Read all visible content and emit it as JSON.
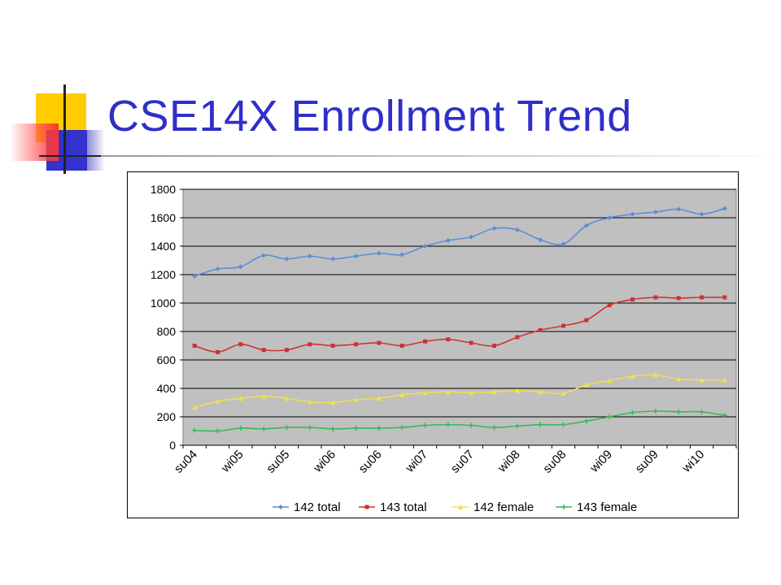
{
  "slide": {
    "title": "CSE14X Enrollment Trend"
  },
  "colors": {
    "title": "#2f2fc8",
    "plot_background": "#c0c0c0",
    "deco_yellow": "#ffcc00",
    "deco_blue": "#3333cc",
    "deco_red": "#ff3333"
  },
  "chart_data": {
    "type": "line",
    "title": "",
    "xlabel": "",
    "ylabel": "",
    "ylim": [
      0,
      1800
    ],
    "yticks": [
      0,
      200,
      400,
      600,
      800,
      1000,
      1200,
      1400,
      1600,
      1800
    ],
    "grid": "horizontal",
    "legend_position": "bottom",
    "x_tick_labels": [
      "su04",
      "wi05",
      "su05",
      "wi06",
      "su06",
      "wi07",
      "su07",
      "wi08",
      "su08",
      "wi09",
      "su09",
      "wi10"
    ],
    "x_tick_every": 2,
    "n_points": 24,
    "series": [
      {
        "name": "142 total",
        "color": "#5b8fd6",
        "marker": "diamond",
        "values": [
          1190,
          1240,
          1255,
          1335,
          1310,
          1330,
          1310,
          1330,
          1350,
          1340,
          1400,
          1440,
          1465,
          1525,
          1515,
          1445,
          1415,
          1545,
          1600,
          1625,
          1640,
          1660,
          1625,
          1665
        ]
      },
      {
        "name": "143 total",
        "color": "#cc3333",
        "marker": "square",
        "values": [
          700,
          655,
          710,
          670,
          670,
          710,
          700,
          710,
          720,
          700,
          730,
          745,
          720,
          700,
          760,
          810,
          840,
          880,
          985,
          1025,
          1040,
          1035,
          1040,
          1040
        ]
      },
      {
        "name": "142 female",
        "color": "#f0e050",
        "marker": "triangle",
        "values": [
          265,
          310,
          330,
          345,
          330,
          305,
          300,
          320,
          330,
          355,
          370,
          375,
          370,
          375,
          385,
          375,
          365,
          425,
          455,
          485,
          495,
          465,
          460,
          460
        ]
      },
      {
        "name": "143 female",
        "color": "#33bb55",
        "marker": "star",
        "values": [
          105,
          100,
          120,
          115,
          125,
          125,
          115,
          120,
          120,
          125,
          140,
          145,
          140,
          125,
          135,
          145,
          145,
          170,
          200,
          230,
          240,
          235,
          235,
          210
        ]
      }
    ]
  }
}
